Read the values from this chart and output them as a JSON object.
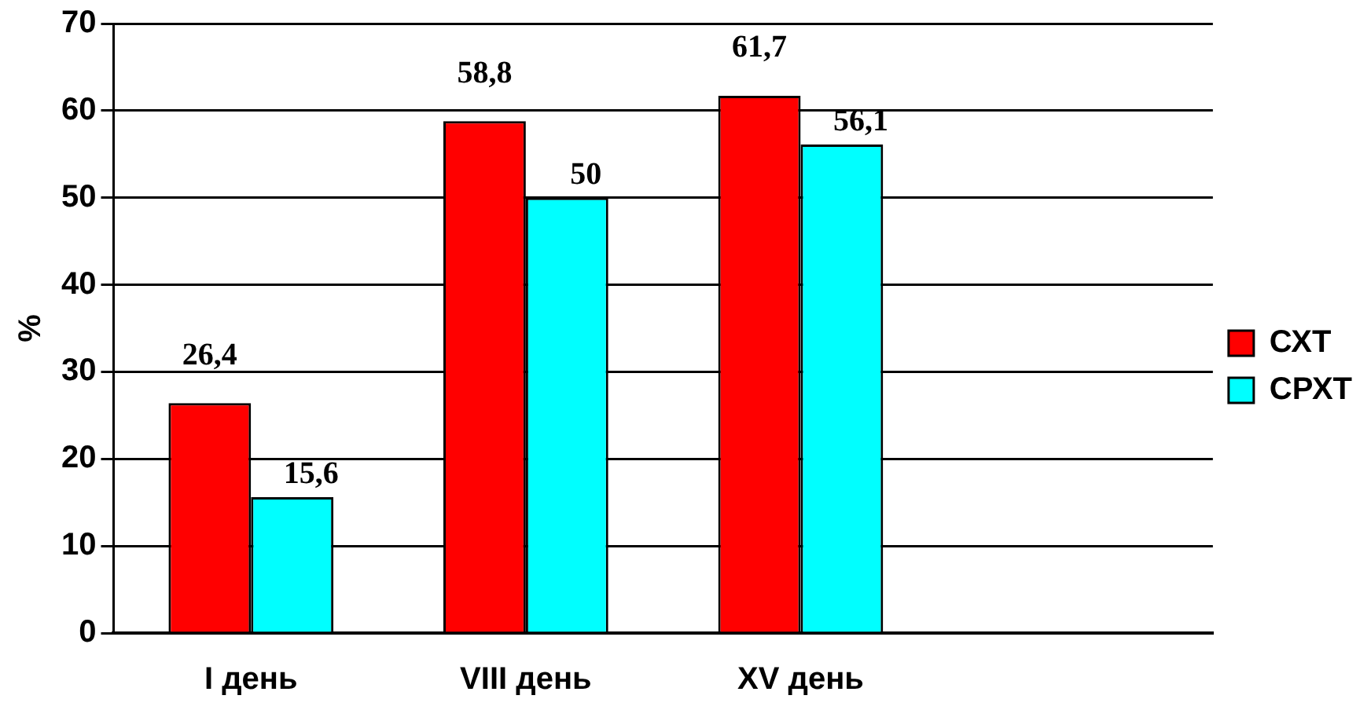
{
  "chart_data": {
    "type": "bar",
    "ylabel": "%",
    "categories": [
      "I день",
      "VIII день",
      "XV день",
      null
    ],
    "series": [
      {
        "name": "СХТ",
        "color": "#ff0000",
        "values": [
          26.4,
          58.8,
          61.7,
          null
        ],
        "value_labels": [
          "26,4",
          "58,8",
          "61,7",
          null
        ]
      },
      {
        "name": "СРХТ",
        "color": "#00ffff",
        "values": [
          15.6,
          50,
          56.1,
          null
        ],
        "value_labels": [
          "15,6",
          "50",
          "56,1",
          null
        ]
      }
    ],
    "ylim": [
      0,
      70
    ],
    "yticks": [
      0,
      10,
      20,
      30,
      40,
      50,
      60,
      70
    ],
    "grid": "y",
    "legend": "right"
  }
}
